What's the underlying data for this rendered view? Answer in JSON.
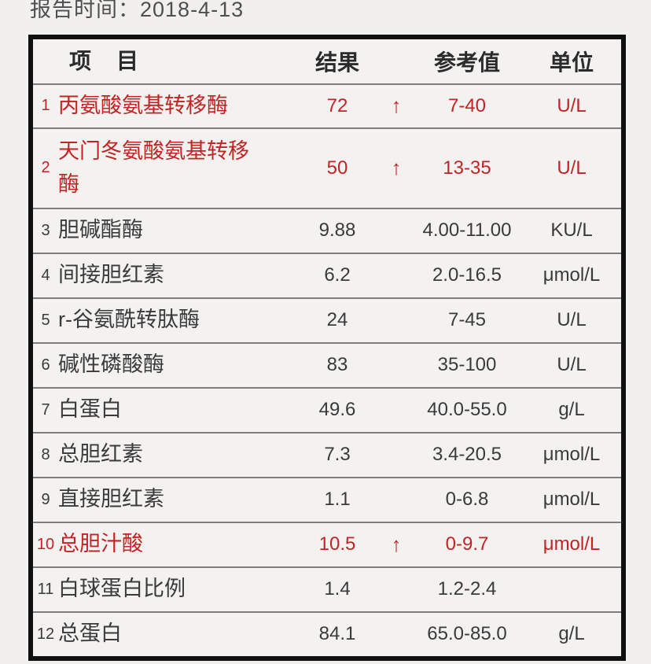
{
  "page": {
    "report_time": "报告时间：2018-4-13"
  },
  "colors": {
    "abnormal_red": "#c02424",
    "normal_text": "#3a3a3a",
    "table_border": "#101010",
    "row_separator": "#7d7d7d",
    "page_background": "#f1f0ee"
  },
  "icons": {
    "up_arrow": "↑"
  },
  "table": {
    "headers": {
      "item": "项　目",
      "result": "结果",
      "reference": "参考值",
      "unit": "单位"
    },
    "rows": [
      {
        "no": "1",
        "item": "丙氨酸氨基转移酶",
        "result": "72",
        "flag": "↑",
        "reference": "7-40",
        "unit": "U/L",
        "abnormal": true
      },
      {
        "no": "2",
        "item": "天门冬氨酸氨基转移酶",
        "result": "50",
        "flag": "↑",
        "reference": "13-35",
        "unit": "U/L",
        "abnormal": true
      },
      {
        "no": "3",
        "item": "胆碱酯酶",
        "result": "9.88",
        "flag": "",
        "reference": "4.00-11.00",
        "unit": "KU/L",
        "abnormal": false
      },
      {
        "no": "4",
        "item": "间接胆红素",
        "result": "6.2",
        "flag": "",
        "reference": "2.0-16.5",
        "unit": "μmol/L",
        "abnormal": false
      },
      {
        "no": "5",
        "item": "r-谷氨酰转肽酶",
        "result": "24",
        "flag": "",
        "reference": "7-45",
        "unit": "U/L",
        "abnormal": false
      },
      {
        "no": "6",
        "item": "碱性磷酸酶",
        "result": "83",
        "flag": "",
        "reference": "35-100",
        "unit": "U/L",
        "abnormal": false
      },
      {
        "no": "7",
        "item": "白蛋白",
        "result": "49.6",
        "flag": "",
        "reference": "40.0-55.0",
        "unit": "g/L",
        "abnormal": false
      },
      {
        "no": "8",
        "item": "总胆红素",
        "result": "7.3",
        "flag": "",
        "reference": "3.4-20.5",
        "unit": "μmol/L",
        "abnormal": false
      },
      {
        "no": "9",
        "item": "直接胆红素",
        "result": "1.1",
        "flag": "",
        "reference": "0-6.8",
        "unit": "μmol/L",
        "abnormal": false
      },
      {
        "no": "10",
        "item": "总胆汁酸",
        "result": "10.5",
        "flag": "↑",
        "reference": "0-9.7",
        "unit": "μmol/L",
        "abnormal": true
      },
      {
        "no": "11",
        "item": "白球蛋白比例",
        "result": "1.4",
        "flag": "",
        "reference": "1.2-2.4",
        "unit": "",
        "abnormal": false
      },
      {
        "no": "12",
        "item": "总蛋白",
        "result": "84.1",
        "flag": "",
        "reference": "65.0-85.0",
        "unit": "g/L",
        "abnormal": false
      }
    ]
  }
}
